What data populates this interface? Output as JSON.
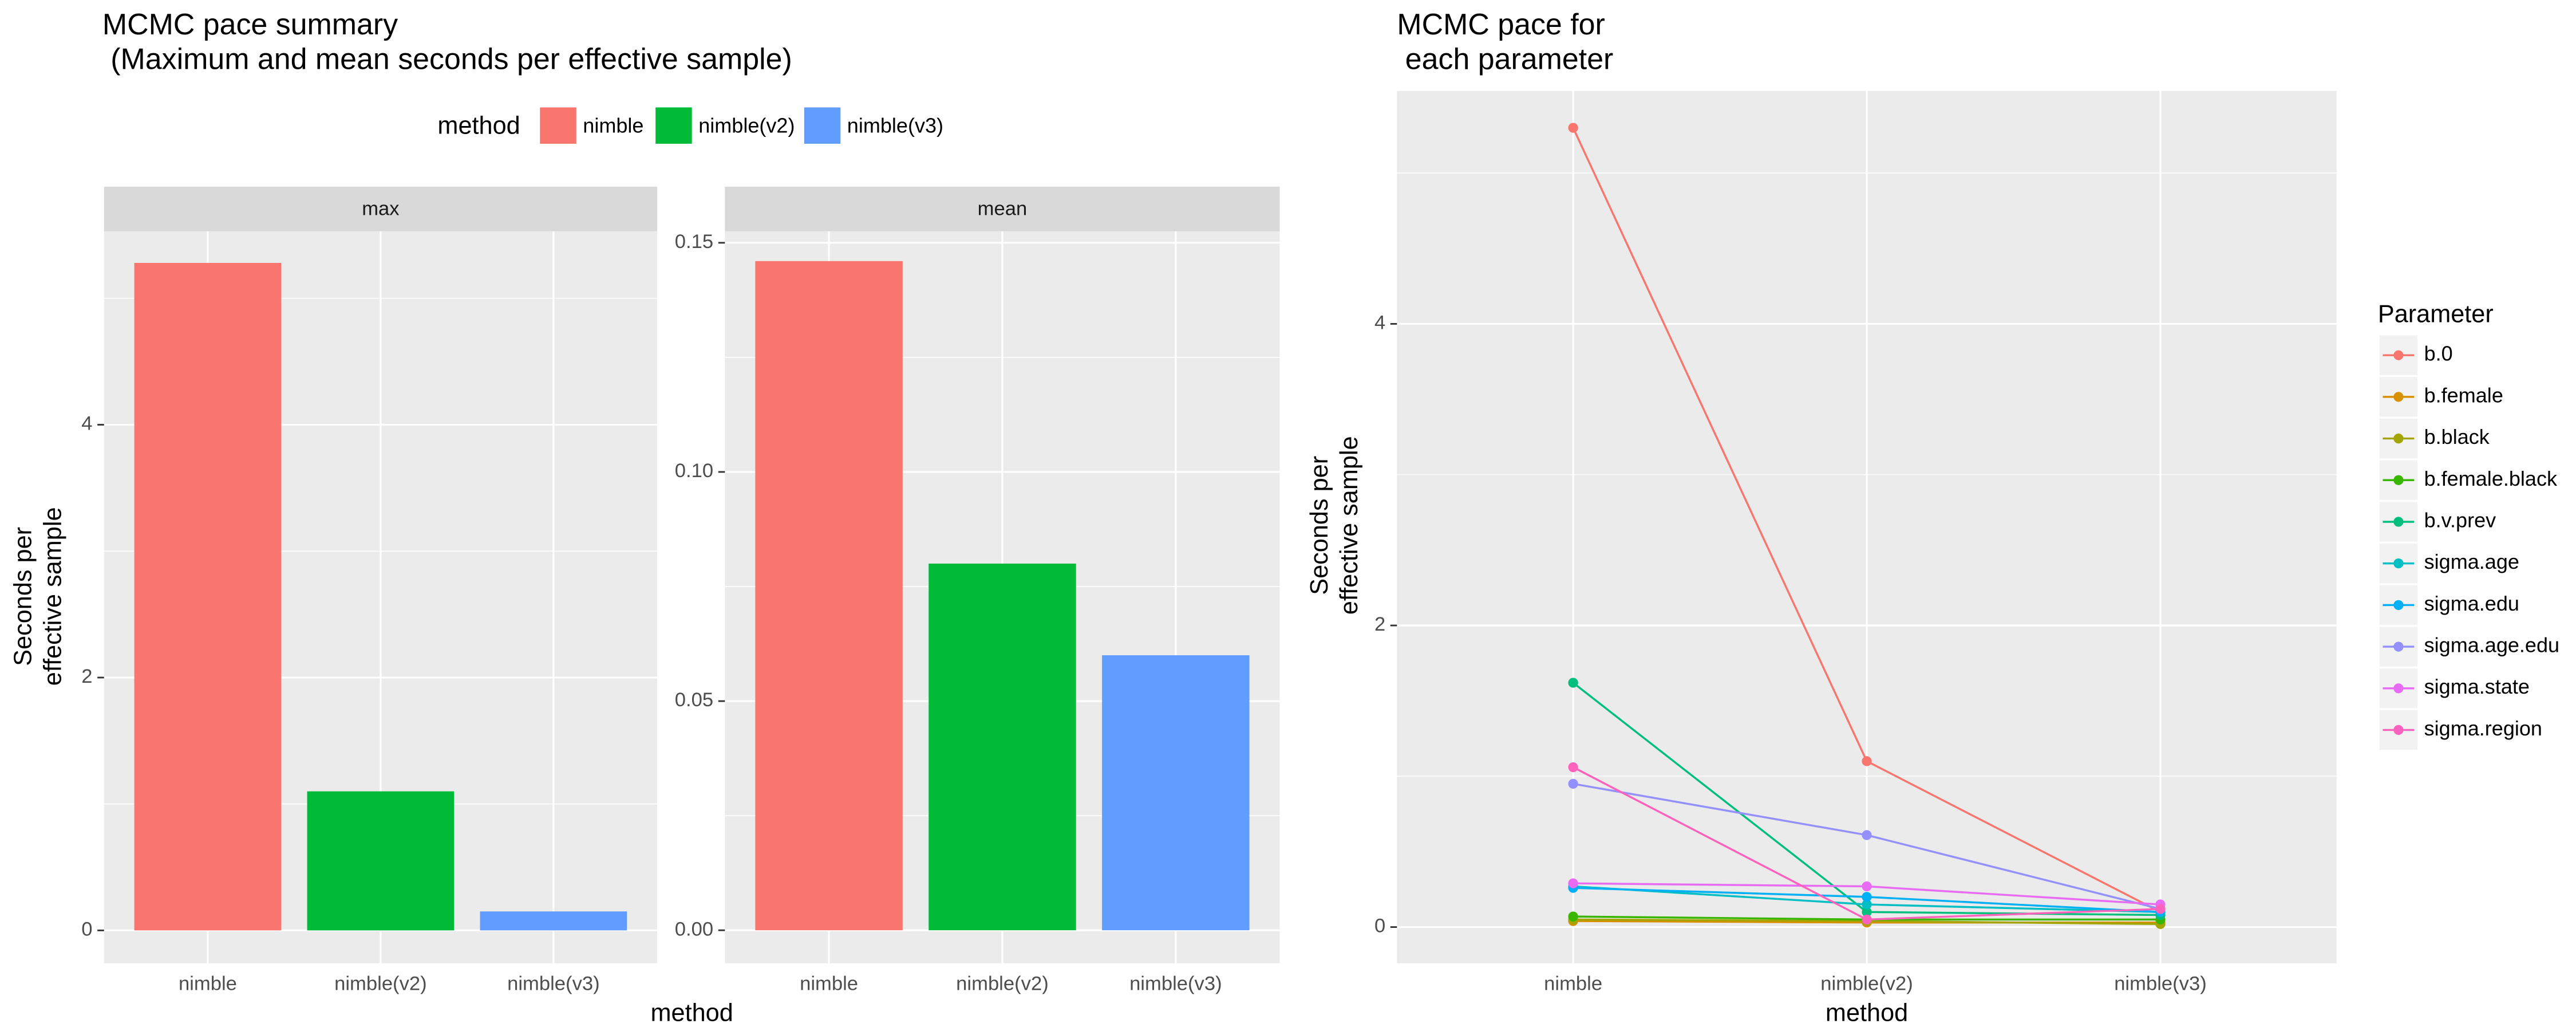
{
  "chart_data": [
    {
      "type": "faceted-bar",
      "title": [
        "MCMC pace summary",
        "(Maximum and mean seconds per effective sample)"
      ],
      "legend_title": "method",
      "x_label": "method",
      "y_label": [
        "Seconds per",
        "effective sample"
      ],
      "categories": [
        "nimble",
        "nimble(v2)",
        "nimble(v3)"
      ],
      "colors": [
        "#F8766D",
        "#00BA38",
        "#619CFF"
      ],
      "facets": [
        {
          "title": "max",
          "values": [
            5.28,
            1.1,
            0.15
          ],
          "ylim": [
            -0.26,
            5.53
          ],
          "yticks": [
            0,
            2,
            4
          ]
        },
        {
          "title": "mean",
          "values": [
            0.146,
            0.08,
            0.06
          ],
          "ylim": [
            -0.0072,
            0.1525
          ],
          "yticks": [
            {
              "value": 0,
              "label": "0.00"
            },
            0.05,
            {
              "value": 0.1,
              "label": "0.10"
            },
            {
              "value": 0.15,
              "label": "0.15"
            }
          ]
        }
      ],
      "grid": true
    },
    {
      "type": "line",
      "title": [
        "MCMC pace for",
        "each parameter"
      ],
      "legend_title": "Parameter",
      "x_label": "method",
      "y_label": [
        "Seconds per",
        "effective sample"
      ],
      "categories": [
        "nimble",
        "nimble(v2)",
        "nimble(v3)"
      ],
      "ylim": [
        -0.24,
        5.545
      ],
      "yticks": [
        0,
        2,
        4
      ],
      "grid": true,
      "series": [
        {
          "name": "b.0",
          "color": "#F8766D",
          "values": [
            5.3,
            1.1,
            0.1
          ]
        },
        {
          "name": "b.female",
          "color": "#D89000",
          "values": [
            0.04,
            0.03,
            0.03
          ]
        },
        {
          "name": "b.black",
          "color": "#A3A500",
          "values": [
            0.05,
            0.04,
            0.02
          ]
        },
        {
          "name": "b.female.black",
          "color": "#39B600",
          "values": [
            0.07,
            0.05,
            0.05
          ]
        },
        {
          "name": "b.v.prev",
          "color": "#00BF7D",
          "values": [
            1.62,
            0.1,
            0.08
          ]
        },
        {
          "name": "sigma.age",
          "color": "#00BFC4",
          "values": [
            0.27,
            0.15,
            0.1
          ]
        },
        {
          "name": "sigma.edu",
          "color": "#00B0F6",
          "values": [
            0.26,
            0.2,
            0.1
          ]
        },
        {
          "name": "sigma.age.edu",
          "color": "#9590FF",
          "values": [
            0.95,
            0.61,
            0.12
          ]
        },
        {
          "name": "sigma.state",
          "color": "#E76BF3",
          "values": [
            0.29,
            0.27,
            0.15
          ]
        },
        {
          "name": "sigma.region",
          "color": "#FF62BC",
          "values": [
            1.06,
            0.05,
            0.12
          ]
        }
      ]
    }
  ]
}
